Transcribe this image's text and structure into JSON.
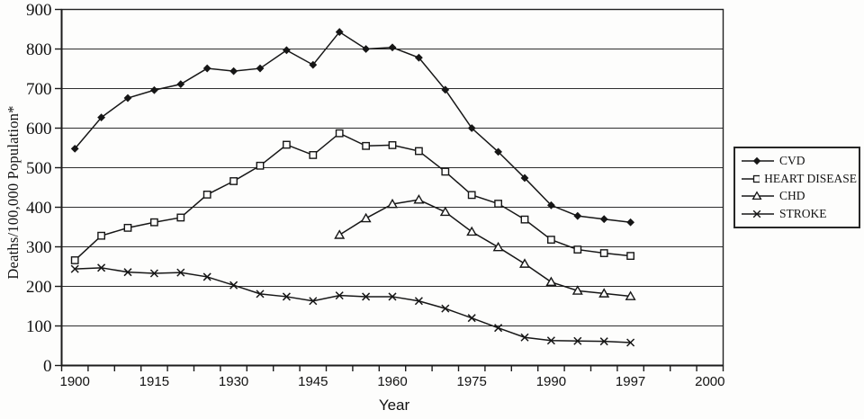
{
  "chart_data": {
    "type": "line",
    "title": "",
    "xlabel": "Year",
    "ylabel": "Deaths/100,000 Population*",
    "ylim": [
      0,
      900
    ],
    "y_ticks": [
      0,
      100,
      200,
      300,
      400,
      500,
      600,
      700,
      800,
      900
    ],
    "x_categories": [
      1900,
      1905,
      1910,
      1915,
      1920,
      1925,
      1930,
      1935,
      1940,
      1945,
      1950,
      1955,
      1960,
      1965,
      1970,
      1975,
      1980,
      1985,
      1990,
      1995,
      1996,
      1997,
      1998,
      1999,
      2000
    ],
    "x_tick_labels": [
      "1900",
      "1915",
      "1930",
      "1945",
      "1960",
      "1975",
      "1990",
      "1997",
      "2000"
    ],
    "grid": "horizontal-gridlines-on",
    "legend_position": "right-outside",
    "line_color": "#161616",
    "series": [
      {
        "name": "CVD",
        "marker": "filled-diamond",
        "years": [
          1900,
          1905,
          1910,
          1915,
          1920,
          1925,
          1930,
          1935,
          1940,
          1945,
          1950,
          1955,
          1960,
          1965,
          1970,
          1975,
          1980,
          1985,
          1990,
          1995,
          1996,
          1997
        ],
        "values": [
          548,
          627,
          676,
          696,
          711,
          751,
          744,
          751,
          797,
          760,
          843,
          800,
          804,
          778,
          697,
          600,
          540,
          474,
          405,
          378,
          370,
          362
        ]
      },
      {
        "name": "HEART DISEASE",
        "marker": "open-square",
        "years": [
          1900,
          1905,
          1910,
          1915,
          1920,
          1925,
          1930,
          1935,
          1940,
          1945,
          1950,
          1955,
          1960,
          1965,
          1970,
          1975,
          1980,
          1985,
          1990,
          1995,
          1996,
          1997
        ],
        "values": [
          266,
          328,
          348,
          362,
          374,
          432,
          466,
          505,
          558,
          532,
          587,
          555,
          557,
          542,
          490,
          431,
          409,
          369,
          318,
          293,
          284,
          277
        ]
      },
      {
        "name": "CHD",
        "marker": "open-triangle",
        "years": [
          1950,
          1955,
          1960,
          1965,
          1970,
          1975,
          1980,
          1985,
          1990,
          1995,
          1996,
          1997
        ],
        "values": [
          330,
          372,
          408,
          419,
          388,
          338,
          299,
          257,
          211,
          189,
          182,
          175
        ]
      },
      {
        "name": "STROKE",
        "marker": "x-cross",
        "years": [
          1900,
          1905,
          1910,
          1915,
          1920,
          1925,
          1930,
          1935,
          1940,
          1945,
          1950,
          1955,
          1960,
          1965,
          1970,
          1975,
          1980,
          1985,
          1990,
          1995,
          1996,
          1997
        ],
        "values": [
          244,
          247,
          236,
          233,
          235,
          224,
          203,
          181,
          174,
          163,
          177,
          174,
          174,
          163,
          144,
          120,
          95,
          71,
          63,
          62,
          61,
          58
        ]
      }
    ]
  }
}
